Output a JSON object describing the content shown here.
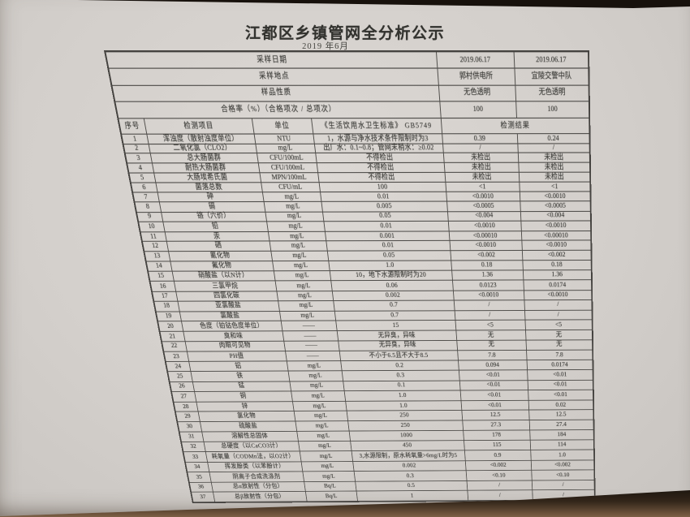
{
  "page": {
    "title": "江都区乡镇管网全分析公示",
    "subtitle": "2019 年6月"
  },
  "table": {
    "info_rows": [
      {
        "label": "采样日期",
        "v1": "2019.06.17",
        "v2": "2019.06.17"
      },
      {
        "label": "采样地点",
        "v1": "郭村供电所",
        "v2": "宜陵交警中队"
      },
      {
        "label": "样品性质",
        "v1": "无色透明",
        "v2": "无色透明"
      },
      {
        "label": "合格率（%）（合格项次 / 总项次）",
        "v1": "100",
        "v2": "100"
      }
    ],
    "columns": {
      "no": "序号",
      "item": "检测项目",
      "unit": "单位",
      "standard": "《生活饮用水卫生标准》 GB5749",
      "result": "检测结果"
    },
    "rows": [
      [
        "1",
        "浑浊度（散射浊度单位）",
        "NTU",
        "1，水源与净水技术条件限制时为3",
        "0.39",
        "0.24"
      ],
      [
        "2",
        "二氧化氯（CLO2）",
        "mg/L",
        "出厂水：0.1~0.8；管网末梢水：≥0.02",
        "/",
        "/"
      ],
      [
        "3",
        "总大肠菌群",
        "CFU/100mL",
        "不得检出",
        "未检出",
        "未检出"
      ],
      [
        "4",
        "耐热大肠菌群",
        "CFU/100mL",
        "不得检出",
        "未检出",
        "未检出"
      ],
      [
        "5",
        "大肠埃希氏菌",
        "MPN/100mL",
        "不得检出",
        "未检出",
        "未检出"
      ],
      [
        "6",
        "菌落总数",
        "CFU/mL",
        "100",
        "<1",
        "<1"
      ],
      [
        "7",
        "砷",
        "mg/L",
        "0.01",
        "<0.0010",
        "<0.0010"
      ],
      [
        "8",
        "镉",
        "mg/L",
        "0.005",
        "<0.0005",
        "<0.0005"
      ],
      [
        "9",
        "铬（六价）",
        "mg/L",
        "0.05",
        "<0.004",
        "<0.004"
      ],
      [
        "10",
        "铅",
        "mg/L",
        "0.01",
        "<0.0010",
        "<0.0010"
      ],
      [
        "11",
        "汞",
        "mg/L",
        "0.001",
        "<0.00010",
        "<0.00010"
      ],
      [
        "12",
        "硒",
        "mg/L",
        "0.01",
        "<0.0010",
        "<0.0010"
      ],
      [
        "13",
        "氰化物",
        "mg/L",
        "0.05",
        "<0.002",
        "<0.002"
      ],
      [
        "14",
        "氟化物",
        "mg/L",
        "1.0",
        "0.18",
        "0.18"
      ],
      [
        "15",
        "硝酸盐（以N计）",
        "mg/L",
        "10，地下水源限制时为20",
        "1.36",
        "1.36"
      ],
      [
        "16",
        "三氯甲烷",
        "mg/L",
        "0.06",
        "0.0123",
        "0.0174"
      ],
      [
        "17",
        "四氯化碳",
        "mg/L",
        "0.002",
        "<0.0010",
        "<0.0010"
      ],
      [
        "18",
        "亚氯酸盐",
        "mg/L",
        "0.7",
        "/",
        "/"
      ],
      [
        "19",
        "氯酸盐",
        "mg/L",
        "0.7",
        "/",
        "/"
      ],
      [
        "20",
        "色度（铂钴色度单位）",
        "——",
        "15",
        "<5",
        "<5"
      ],
      [
        "21",
        "臭和味",
        "——",
        "无异臭，异味",
        "无",
        "无"
      ],
      [
        "22",
        "肉眼可见物",
        "——",
        "无异臭，异味",
        "无",
        "无"
      ],
      [
        "23",
        "PH值",
        "——",
        "不小于6.5且不大于8.5",
        "7.8",
        "7.8"
      ],
      [
        "24",
        "铝",
        "mg/L",
        "0.2",
        "0.094",
        "0.0174"
      ],
      [
        "25",
        "铁",
        "mg/L",
        "0.3",
        "<0.01",
        "<0.01"
      ],
      [
        "26",
        "锰",
        "mg/L",
        "0.1",
        "<0.01",
        "<0.01"
      ],
      [
        "27",
        "铜",
        "mg/L",
        "1.0",
        "<0.01",
        "<0.01"
      ],
      [
        "28",
        "锌",
        "mg/L",
        "1.0",
        "<0.01",
        "0.02"
      ],
      [
        "29",
        "氯化物",
        "mg/L",
        "250",
        "12.5",
        "12.5"
      ],
      [
        "30",
        "硫酸盐",
        "mg/L",
        "250",
        "27.3",
        "27.4"
      ],
      [
        "31",
        "溶解性总固体",
        "mg/L",
        "1000",
        "178",
        "184"
      ],
      [
        "32",
        "总硬度（以CaCO3计）",
        "mg/L",
        "450",
        "115",
        "114"
      ],
      [
        "33",
        "耗氧量（CODMn法，以O2计）",
        "mg/L",
        "3,水源限制，原水耗氧量>6mg/L时为5",
        "0.9",
        "1.0"
      ],
      [
        "34",
        "挥发酚类（以苯酚计）",
        "mg/L",
        "0.002",
        "<0.002",
        "<0.002"
      ],
      [
        "35",
        "阴离子合成洗涤剂",
        "mg/L",
        "0.3",
        "<0.10",
        "<0.10"
      ],
      [
        "36",
        "总α放射性（分包）",
        "Bq/L",
        "0.5",
        "/",
        "/"
      ],
      [
        "37",
        "总β放射性（分包）",
        "Bq/L",
        "1",
        "/",
        "/"
      ]
    ]
  }
}
